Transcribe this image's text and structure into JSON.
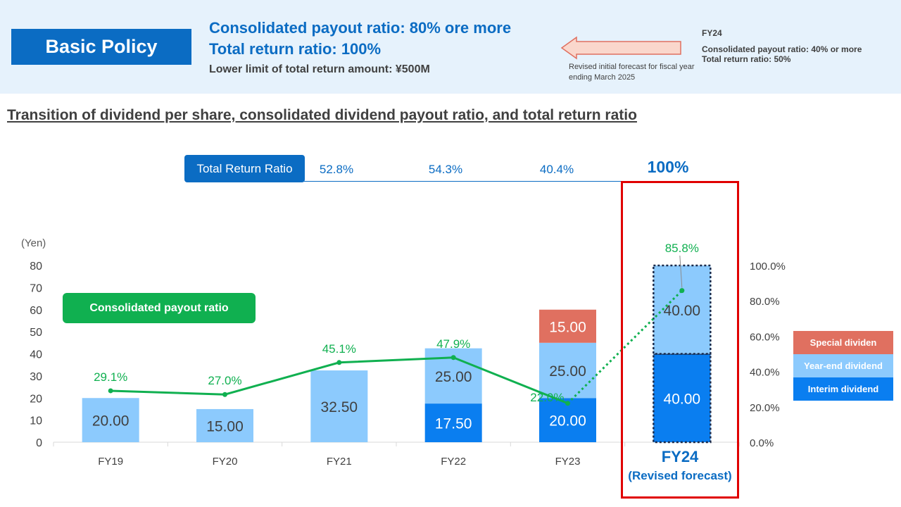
{
  "policy": {
    "label": "Basic Policy",
    "line1": "Consolidated payout ratio: 80% ore more",
    "line2": "Total return ratio: 100%",
    "line3": "Lower limit of total return amount: ¥500M",
    "arrow_note": "Revised initial forecast for fiscal year ending March 2025",
    "prev_title": "FY24",
    "prev_line1": "Consolidated payout ratio: 40% or more",
    "prev_line2": "Total return ratio: 50%"
  },
  "section_title": "Transition of dividend per share, consolidated dividend payout ratio, and total return ratio",
  "total_return": {
    "label": "Total Return Ratio",
    "values": [
      "52.8%",
      "54.3%",
      "40.4%"
    ],
    "fy24_value": "100%"
  },
  "payout_label": "Consolidated payout ratio",
  "fy24_highlight": {
    "label": "FY24",
    "sublabel": "(Revised forecast)"
  },
  "chart_data": {
    "type": "bar",
    "stacked": true,
    "categories": [
      "FY19",
      "FY20",
      "FY21",
      "FY22",
      "FY23",
      "FY24"
    ],
    "y_unit_label": "(Yen)",
    "ylim": [
      0,
      80
    ],
    "y_ticks": [
      "0",
      "10",
      "20",
      "30",
      "40",
      "50",
      "60",
      "70",
      "80"
    ],
    "y2lim": [
      0,
      100
    ],
    "y2_ticks": [
      "0.0%",
      "20.0%",
      "40.0%",
      "60.0%",
      "80.0%",
      "100.0%"
    ],
    "series": [
      {
        "name": "Interim dividend",
        "color": "#0a7ef0",
        "values": [
          0,
          0,
          0,
          17.5,
          20,
          40
        ],
        "labels": [
          "",
          "",
          "",
          "17.50",
          "20.00",
          "40.00"
        ]
      },
      {
        "name": "Year-end dividend",
        "color": "#8ccafd",
        "values": [
          20,
          15,
          32.5,
          25,
          25,
          40
        ],
        "labels": [
          "20.00",
          "15.00",
          "32.50",
          "25.00",
          "25.00",
          "40.00"
        ]
      },
      {
        "name": "Special dividen",
        "color": "#e07060",
        "values": [
          0,
          0,
          0,
          0,
          15,
          0
        ],
        "labels": [
          "",
          "",
          "",
          "",
          "15.00",
          ""
        ]
      }
    ],
    "payout_ratio": {
      "values": [
        29.1,
        27.0,
        45.1,
        47.9,
        22.0,
        85.8
      ],
      "labels": [
        "29.1%",
        "27.0%",
        "45.1%",
        "47.9%",
        "22.0%",
        "85.8%"
      ],
      "color": "#10b050"
    },
    "forecast_index": 5,
    "legend_placement": "right"
  }
}
